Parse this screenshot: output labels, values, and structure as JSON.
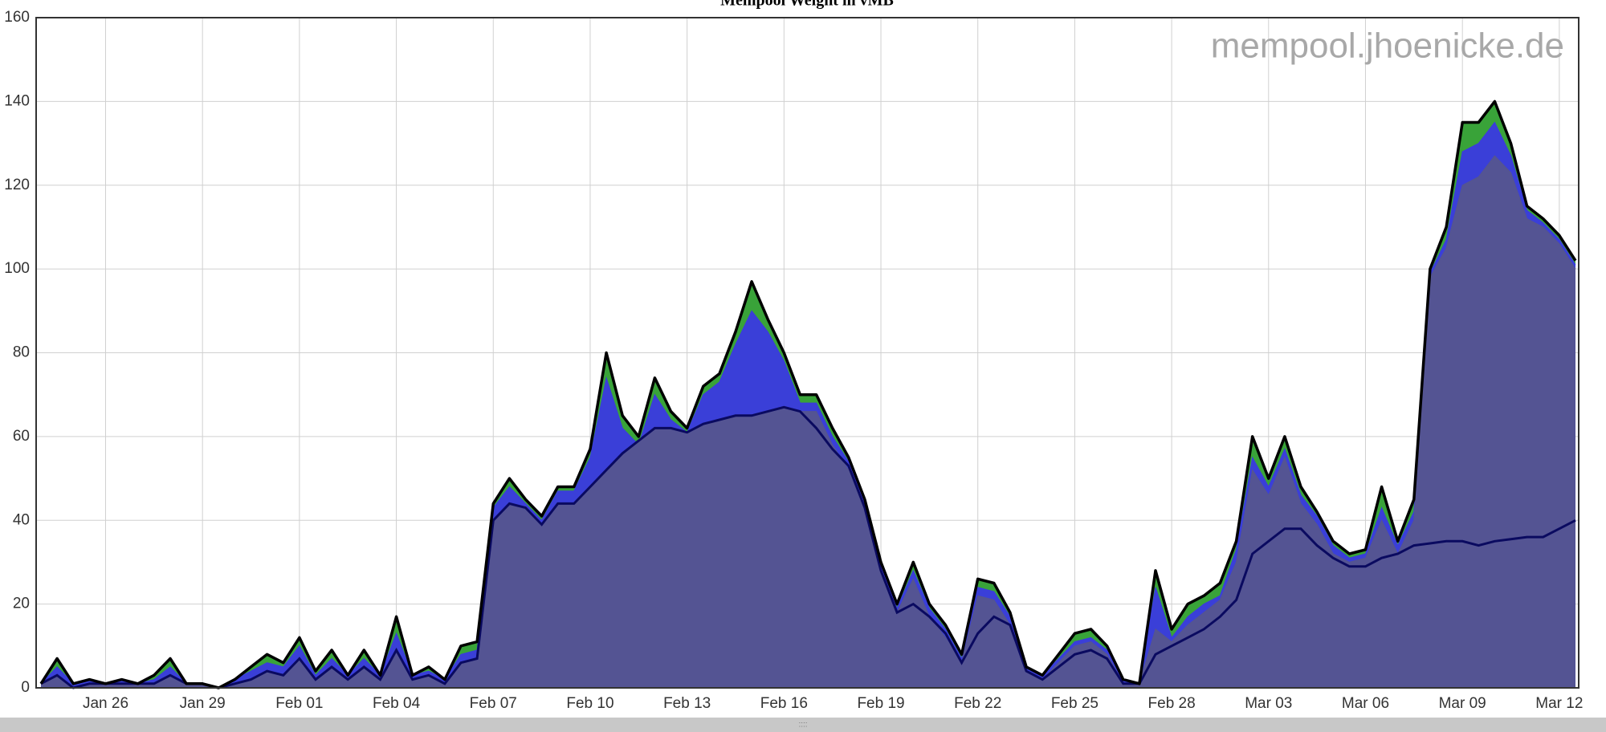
{
  "chart_data": {
    "type": "area",
    "title": "Mempool Weight in vMB",
    "annotation": "mempool.jhoenicke.de",
    "x": [
      -2,
      -1.5,
      -1,
      -0.5,
      0,
      0.5,
      1,
      1.5,
      2,
      2.5,
      3,
      3.5,
      4,
      4.5,
      5,
      5.5,
      6,
      6.5,
      7,
      7.5,
      8,
      8.5,
      9,
      9.5,
      10,
      10.5,
      11,
      11.5,
      12,
      12.5,
      13,
      13.5,
      14,
      14.5,
      15,
      15.5,
      16,
      16.5,
      17,
      17.5,
      18,
      18.5,
      19,
      19.5,
      20,
      20.5,
      21,
      21.5,
      22,
      22.5,
      23,
      23.5,
      24,
      24.5,
      25,
      25.5,
      26,
      26.5,
      27,
      27.5,
      28,
      28.5,
      29,
      29.5,
      30,
      30.5,
      31,
      31.5,
      32,
      32.5,
      33,
      33.5,
      34,
      34.5,
      35,
      35.5,
      36,
      36.5,
      37,
      37.5,
      38,
      38.5,
      39,
      39.5,
      40,
      40.5,
      41,
      41.5,
      42,
      42.5,
      43,
      43.5,
      44,
      44.5,
      45,
      45.5
    ],
    "series": [
      {
        "color": "#2e9e2e",
        "line_color": "#000000",
        "fill": true,
        "values": [
          1,
          7,
          1,
          2,
          1,
          2,
          1,
          3,
          7,
          1,
          1,
          0,
          2,
          5,
          8,
          6,
          12,
          4,
          9,
          3,
          9,
          3,
          17,
          3,
          5,
          2,
          10,
          11,
          44,
          50,
          45,
          41,
          48,
          48,
          57,
          80,
          65,
          60,
          74,
          66,
          62,
          72,
          75,
          85,
          97,
          88,
          80,
          70,
          70,
          62,
          55,
          45,
          30,
          20,
          30,
          20,
          15,
          8,
          26,
          25,
          18,
          5,
          3,
          8,
          13,
          14,
          10,
          2,
          1,
          28,
          14,
          20,
          22,
          25,
          35,
          60,
          50,
          60,
          48,
          42,
          35,
          32,
          33,
          48,
          35,
          45,
          100,
          110,
          135,
          135,
          140,
          130,
          115,
          112,
          108,
          102
        ]
      },
      {
        "color": "#3a3ae0",
        "fill": true,
        "values": [
          1,
          5,
          1,
          2,
          1,
          2,
          1,
          2,
          5,
          1,
          1,
          0,
          2,
          4,
          6,
          5,
          10,
          3,
          7,
          3,
          7,
          3,
          13,
          3,
          4,
          2,
          8,
          9,
          43,
          48,
          44,
          40,
          47,
          47,
          55,
          74,
          62,
          58,
          70,
          64,
          61,
          70,
          73,
          82,
          90,
          85,
          78,
          68,
          68,
          60,
          54,
          44,
          29,
          19,
          28,
          19,
          14,
          7,
          24,
          23,
          17,
          5,
          3,
          7,
          11,
          12,
          9,
          2,
          1,
          24,
          12,
          17,
          20,
          22,
          33,
          55,
          48,
          57,
          46,
          41,
          34,
          31,
          32,
          43,
          34,
          42,
          99,
          107,
          128,
          130,
          135,
          127,
          114,
          111,
          107,
          101
        ]
      },
      {
        "color": "#55558f",
        "fill": true,
        "values": [
          1,
          3,
          0,
          1,
          1,
          1,
          1,
          1,
          3,
          1,
          1,
          0,
          1,
          2,
          4,
          3,
          7,
          2,
          5,
          2,
          5,
          2,
          9,
          2,
          3,
          1,
          6,
          7,
          40,
          44,
          43,
          39,
          44,
          44,
          48,
          52,
          56,
          59,
          62,
          62,
          61,
          63,
          64,
          65,
          65,
          66,
          67,
          66,
          66,
          58,
          52,
          42,
          27,
          18,
          26,
          17,
          12,
          6,
          22,
          21,
          15,
          4,
          2,
          6,
          10,
          11,
          8,
          1,
          1,
          14,
          11,
          15,
          18,
          21,
          30,
          52,
          46,
          55,
          44,
          39,
          32,
          30,
          31,
          40,
          32,
          40,
          98,
          105,
          120,
          122,
          127,
          123,
          112,
          110,
          106,
          100
        ]
      },
      {
        "color": "#0a0a60",
        "fill": false,
        "values": [
          1,
          3,
          0,
          1,
          1,
          1,
          1,
          1,
          3,
          1,
          1,
          0,
          1,
          2,
          4,
          3,
          7,
          2,
          5,
          2,
          5,
          2,
          9,
          2,
          3,
          1,
          6,
          7,
          40,
          44,
          43,
          39,
          44,
          44,
          48,
          52,
          56,
          59,
          62,
          62,
          61,
          63,
          64,
          65,
          65,
          66,
          67,
          66,
          62,
          57,
          53,
          43,
          28,
          18,
          20,
          17,
          13,
          6,
          13,
          17,
          15,
          4,
          2,
          5,
          8,
          9,
          7,
          1,
          1,
          8,
          10,
          12,
          14,
          17,
          21,
          32,
          35,
          38,
          38,
          34,
          31,
          29,
          29,
          31,
          32,
          34,
          34.5,
          35,
          35,
          34,
          35,
          35.5,
          36,
          36,
          38,
          40
        ]
      }
    ],
    "xlim": [
      -2.15,
      45.6
    ],
    "ylim": [
      0,
      160
    ],
    "xticks": [
      {
        "value": 0,
        "label": "Jan 26"
      },
      {
        "value": 3,
        "label": "Jan 29"
      },
      {
        "value": 6,
        "label": "Feb 01"
      },
      {
        "value": 9,
        "label": "Feb 04"
      },
      {
        "value": 12,
        "label": "Feb 07"
      },
      {
        "value": 15,
        "label": "Feb 10"
      },
      {
        "value": 18,
        "label": "Feb 13"
      },
      {
        "value": 21,
        "label": "Feb 16"
      },
      {
        "value": 24,
        "label": "Feb 19"
      },
      {
        "value": 27,
        "label": "Feb 22"
      },
      {
        "value": 30,
        "label": "Feb 25"
      },
      {
        "value": 33,
        "label": "Feb 28"
      },
      {
        "value": 36,
        "label": "Mar 03"
      },
      {
        "value": 39,
        "label": "Mar 06"
      },
      {
        "value": 42,
        "label": "Mar 09"
      },
      {
        "value": 45,
        "label": "Mar 12"
      }
    ],
    "yticks": [
      0,
      20,
      40,
      60,
      80,
      100,
      120,
      140,
      160
    ],
    "grid": true
  }
}
